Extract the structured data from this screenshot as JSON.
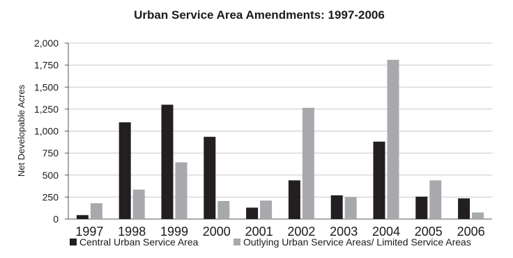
{
  "chart_data": {
    "type": "bar",
    "title": "Urban Service Area Amendments: 1997-2006",
    "xlabel": "",
    "ylabel": "Net Developable Acres",
    "ylim": [
      0,
      2000
    ],
    "yticks": [
      "0",
      "250",
      "500",
      "750",
      "1,000",
      "1,250",
      "1,500",
      "1,750",
      "2,000"
    ],
    "ytick_values": [
      0,
      250,
      500,
      750,
      1000,
      1250,
      1500,
      1750,
      2000
    ],
    "categories": [
      "1997",
      "1998",
      "1999",
      "2000",
      "2001",
      "2002",
      "2003",
      "2004",
      "2005",
      "2006"
    ],
    "series": [
      {
        "name": "Central Urban Service Area",
        "color": "#231f20",
        "values": [
          45,
          1100,
          1300,
          935,
          130,
          440,
          270,
          880,
          255,
          235
        ]
      },
      {
        "name": "Outlying Urban Service Areas/ Limited Service Areas",
        "color": "#a7a9ac",
        "values": [
          180,
          335,
          645,
          205,
          210,
          1265,
          250,
          1810,
          440,
          75
        ]
      }
    ],
    "grid": true,
    "legend_position": "bottom"
  }
}
